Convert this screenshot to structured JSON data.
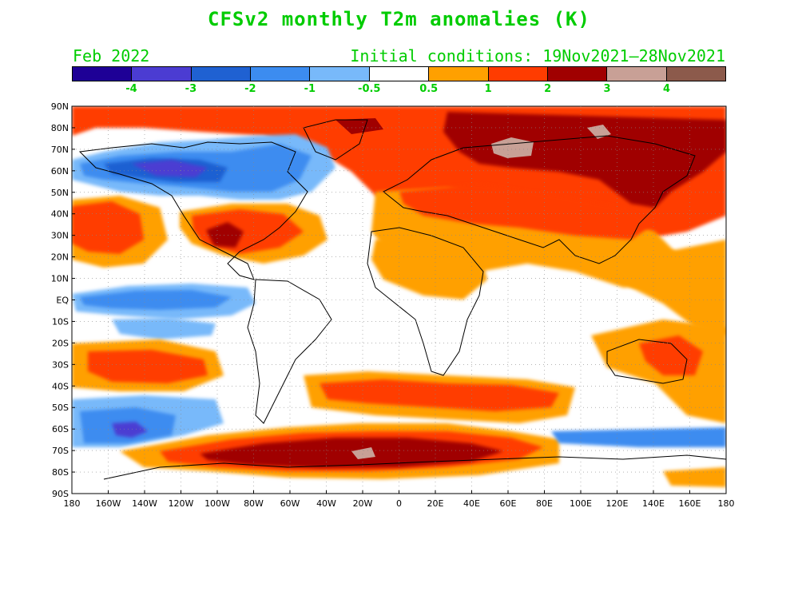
{
  "header": {
    "title": "CFSv2 monthly T2m anomalies (K)",
    "month": "Feb 2022",
    "initial_conditions": "Initial conditions: 19Nov2021–28Nov2021",
    "text_color": "#00cc00"
  },
  "colorbar": {
    "colors": [
      "#1e0096",
      "#4b3cd2",
      "#1f61d2",
      "#3c8cf0",
      "#78b9fa",
      "#ffffff",
      "#ffa000",
      "#ff3c00",
      "#a00000",
      "#c8a096",
      "#8c5a4b"
    ],
    "labels": [
      "-4",
      "-3",
      "-2",
      "-1",
      "-0.5",
      "0.5",
      "1",
      "2",
      "3",
      "4"
    ]
  },
  "map": {
    "lat_labels": [
      "90N",
      "80N",
      "70N",
      "60N",
      "50N",
      "40N",
      "30N",
      "20N",
      "10N",
      "EQ",
      "10S",
      "20S",
      "30S",
      "40S",
      "50S",
      "60S",
      "70S",
      "80S",
      "90S"
    ],
    "lon_labels": [
      "180",
      "160W",
      "140W",
      "120W",
      "100W",
      "80W",
      "60W",
      "40W",
      "20W",
      "0",
      "20E",
      "40E",
      "60E",
      "80E",
      "100E",
      "120E",
      "140E",
      "160E",
      "180"
    ]
  }
}
